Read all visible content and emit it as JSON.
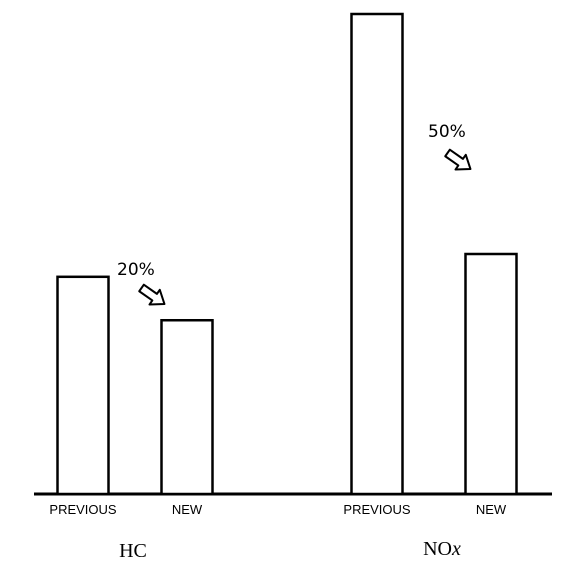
{
  "chart_data": {
    "type": "bar",
    "groups": [
      {
        "name": "HC",
        "name_main": "HC",
        "name_sub": "",
        "reduction": "20%",
        "bars": [
          {
            "label": "PREVIOUS",
            "value": 100
          },
          {
            "label": "NEW",
            "value": 80
          }
        ]
      },
      {
        "name": "NOx",
        "name_main": "NO",
        "name_sub": "x",
        "reduction": "50%",
        "bars": [
          {
            "label": "PREVIOUS",
            "value": 221
          },
          {
            "label": "NEW",
            "value": 110.5
          }
        ]
      }
    ],
    "ylim": [
      0,
      221
    ],
    "grid": false,
    "legend": "none",
    "title": "",
    "xlabel": "",
    "ylabel": ""
  }
}
